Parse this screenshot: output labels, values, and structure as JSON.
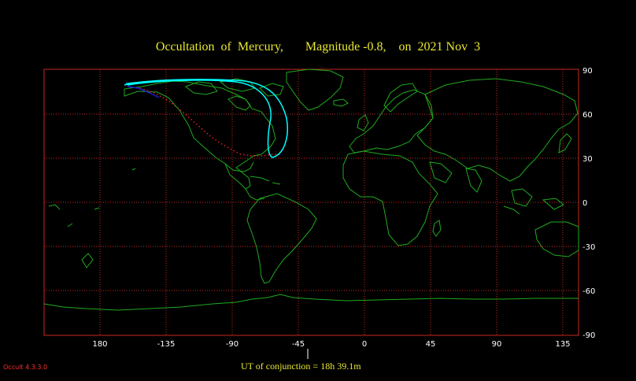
{
  "title": "Occultation  of  Mercury,       Magnitude -0.8,    on  2021 Nov  3",
  "conjunction_label": "UT of conjunction = 18h 39.1m",
  "version_label": "Occult 4.3.3.0",
  "colors": {
    "background": "#000000",
    "title": "#e8e832",
    "coastline": "#1faa1f",
    "grid": "#c8281e",
    "path_limit_outer": "#00ffff",
    "path_limit_inner": "#1e1ecc",
    "central_line": "#e02020",
    "version": "#ff3030"
  },
  "map": {
    "projection": "equirectangular",
    "longitude_ticks": [
      "180",
      "-135",
      "-90",
      "-45",
      "0",
      "45",
      "90",
      "135"
    ],
    "latitude_ticks": [
      "90",
      "60",
      "30",
      "0",
      "-30",
      "-60",
      "-90"
    ],
    "longitude_values": [
      180,
      -135,
      -90,
      -45,
      0,
      45,
      90,
      135
    ],
    "latitude_values": [
      90,
      60,
      30,
      0,
      -30,
      -60,
      -90
    ]
  }
}
